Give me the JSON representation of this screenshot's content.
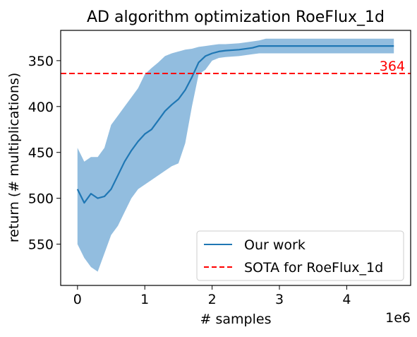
{
  "chart_data": {
    "type": "line",
    "title": "AD algorithm optimization RoeFlux_1d",
    "xlabel": "# samples",
    "ylabel": "return (# multiplications)",
    "x_offset_label": "1e6",
    "x_unit_multiplier": 1000000,
    "xlim": [
      -250000,
      4950000
    ],
    "ylim": [
      595,
      317
    ],
    "y_inverted": true,
    "x_ticks": [
      0,
      1,
      2,
      3,
      4
    ],
    "y_ticks": [
      350,
      400,
      450,
      500,
      550
    ],
    "grid": false,
    "legend_position": "lower-right",
    "series": [
      {
        "name": "Our work",
        "color": "#1f77b4",
        "band_color": "#7fb2d9",
        "x": [
          0,
          100000,
          200000,
          300000,
          400000,
          500000,
          600000,
          700000,
          800000,
          900000,
          1000000,
          1100000,
          1200000,
          1300000,
          1400000,
          1500000,
          1600000,
          1700000,
          1800000,
          1900000,
          2000000,
          2100000,
          2200000,
          2400000,
          2600000,
          2700000,
          2800000,
          3000000,
          3200000,
          3400000,
          3600000,
          3800000,
          4000000,
          4200000,
          4400000,
          4700000
        ],
        "values": [
          490,
          505,
          495,
          500,
          498,
          490,
          475,
          460,
          448,
          438,
          430,
          425,
          415,
          405,
          398,
          392,
          382,
          368,
          352,
          345,
          342,
          340,
          339,
          338,
          336,
          334,
          334,
          334,
          334,
          334,
          334,
          334,
          334,
          334,
          334,
          334
        ],
        "band_upper": [
          445,
          460,
          455,
          455,
          445,
          420,
          410,
          400,
          390,
          380,
          365,
          358,
          352,
          345,
          342,
          340,
          338,
          337,
          335,
          334,
          333,
          332,
          332,
          331,
          329,
          328,
          326,
          326,
          326,
          326,
          326,
          326,
          326,
          326,
          326,
          326
        ],
        "band_lower": [
          550,
          565,
          575,
          580,
          560,
          540,
          530,
          515,
          500,
          490,
          485,
          480,
          475,
          470,
          465,
          462,
          440,
          400,
          365,
          360,
          350,
          347,
          346,
          345,
          343,
          342,
          342,
          342,
          342,
          342,
          342,
          342,
          342,
          342,
          342,
          342
        ]
      },
      {
        "name": "SOTA for RoeFlux_1d",
        "color": "#ff0000",
        "style": "dashed",
        "value": 364,
        "annotation": "364"
      }
    ]
  }
}
